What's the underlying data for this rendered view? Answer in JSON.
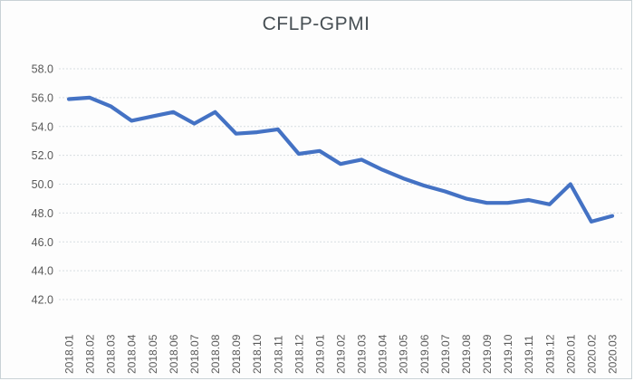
{
  "chart_data": {
    "type": "line",
    "title": "CFLP-GPMI",
    "categories": [
      "2018.01",
      "2018.02",
      "2018.03",
      "2018.04",
      "2018.05",
      "2018.06",
      "2018.07",
      "2018.08",
      "2018.09",
      "2018.10",
      "2018.11",
      "2018.12",
      "2019.01",
      "2019.02",
      "2019.03",
      "2019.04",
      "2019.05",
      "2019.06",
      "2019.07",
      "2019.08",
      "2019.09",
      "2019.10",
      "2019.11",
      "2019.12",
      "2020.01",
      "2020.02",
      "2020.03"
    ],
    "values": [
      55.9,
      56.0,
      55.4,
      54.4,
      54.7,
      55.0,
      54.2,
      55.0,
      53.5,
      53.6,
      53.8,
      52.1,
      52.3,
      51.4,
      51.7,
      51.0,
      50.4,
      49.9,
      49.5,
      49.0,
      48.7,
      48.7,
      48.9,
      48.6,
      50.0,
      47.4,
      47.8
    ],
    "xlabel": "",
    "ylabel": "",
    "ylim": [
      42.0,
      58.0
    ],
    "ytick_step": 2.0,
    "yticks": [
      "58.0",
      "56.0",
      "54.0",
      "52.0",
      "50.0",
      "48.0",
      "46.0",
      "44.0",
      "42.0"
    ],
    "grid": true,
    "legend": "none",
    "line_color": "#4472C4",
    "gridline_color": "#d7dde1",
    "axis_label_color": "#595959",
    "title_color": "#474f54"
  }
}
